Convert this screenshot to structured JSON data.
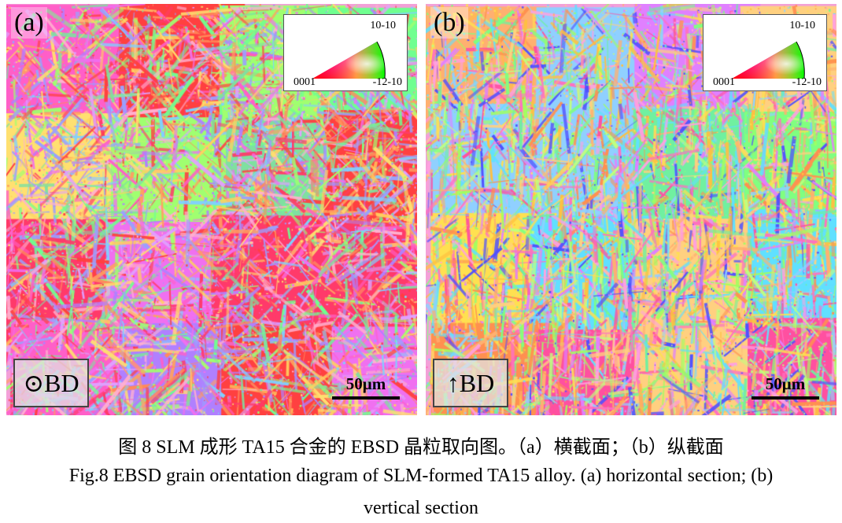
{
  "panels": [
    {
      "label": "(a)",
      "direction": "⊙BD",
      "scale_bar": "50μm",
      "legend": {
        "top": "10-10",
        "left": "0001",
        "right": "-12-10"
      }
    },
    {
      "label": "(b)",
      "direction": "↑BD",
      "scale_bar": "50μm",
      "legend": {
        "top": "10-10",
        "left": "0001",
        "right": "-12-10"
      }
    }
  ],
  "caption": {
    "zh": "图 8 SLM 成形 TA15 合金的 EBSD 晶粒取向图。（a）横截面；（b）纵截面",
    "en_line1": "Fig.8 EBSD grain orientation diagram of SLM-formed TA15 alloy. (a) horizontal section; (b)",
    "en_line2": "vertical section"
  },
  "colors": {
    "ipf_0001": "#ff0000",
    "ipf_10-10": "#0000ff",
    "ipf_-12-10": "#00ff00"
  }
}
